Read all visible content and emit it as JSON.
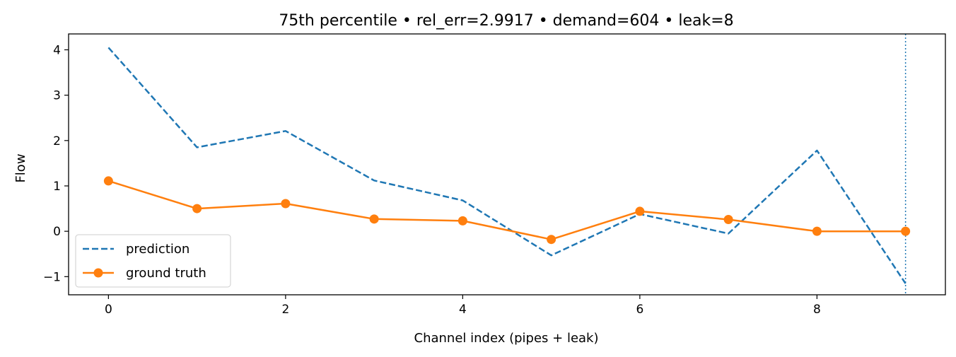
{
  "chart_data": {
    "type": "line",
    "title": "75th percentile • rel_err=2.9917 • demand=604 • leak=8",
    "xlabel": "Channel index (pipes + leak)",
    "ylabel": "Flow",
    "xlim": [
      -0.45,
      9.45
    ],
    "ylim": [
      -1.4,
      4.35
    ],
    "xticks": [
      0,
      2,
      4,
      6,
      8
    ],
    "yticks": [
      -1,
      0,
      1,
      2,
      3,
      4
    ],
    "xtick_labels": [
      "0",
      "2",
      "4",
      "6",
      "8"
    ],
    "ytick_labels": [
      "−1",
      "0",
      "1",
      "2",
      "3",
      "4"
    ],
    "x": [
      0,
      1,
      2,
      3,
      4,
      5,
      6,
      7,
      8,
      9
    ],
    "series": [
      {
        "name": "prediction",
        "style": "dashed",
        "color": "#1f77b4",
        "values": [
          4.05,
          1.85,
          2.21,
          1.12,
          0.68,
          -0.53,
          0.38,
          -0.05,
          1.78,
          -1.15
        ]
      },
      {
        "name": "ground truth",
        "style": "solid-markers",
        "color": "#ff7f0e",
        "values": [
          1.11,
          0.5,
          0.61,
          0.27,
          0.23,
          -0.18,
          0.44,
          0.26,
          0.0,
          0.0
        ]
      }
    ],
    "vline": {
      "x": 9,
      "style": "dotted",
      "color": "#1f77b4"
    },
    "legend": {
      "position": "lower-left"
    },
    "grid": false
  }
}
